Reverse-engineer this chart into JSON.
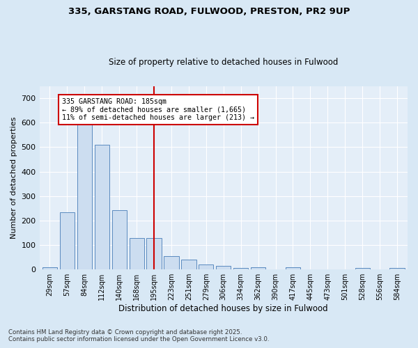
{
  "title1": "335, GARSTANG ROAD, FULWOOD, PRESTON, PR2 9UP",
  "title2": "Size of property relative to detached houses in Fulwood",
  "xlabel": "Distribution of detached houses by size in Fulwood",
  "ylabel": "Number of detached properties",
  "categories": [
    "29sqm",
    "57sqm",
    "84sqm",
    "112sqm",
    "140sqm",
    "168sqm",
    "195sqm",
    "223sqm",
    "251sqm",
    "279sqm",
    "306sqm",
    "334sqm",
    "362sqm",
    "390sqm",
    "417sqm",
    "445sqm",
    "473sqm",
    "501sqm",
    "528sqm",
    "556sqm",
    "584sqm"
  ],
  "values": [
    10,
    233,
    595,
    510,
    243,
    128,
    128,
    55,
    40,
    20,
    15,
    5,
    8,
    0,
    10,
    0,
    0,
    0,
    5,
    0,
    5
  ],
  "bar_color": "#ccddf0",
  "bar_edge_color": "#5a8abf",
  "vline_index": 6,
  "vline_color": "#cc0000",
  "annotation_text": "335 GARSTANG ROAD: 185sqm\n← 89% of detached houses are smaller (1,665)\n11% of semi-detached houses are larger (213) →",
  "annotation_box_color": "#cc0000",
  "ylim": [
    0,
    750
  ],
  "yticks": [
    0,
    100,
    200,
    300,
    400,
    500,
    600,
    700
  ],
  "footer1": "Contains HM Land Registry data © Crown copyright and database right 2025.",
  "footer2": "Contains public sector information licensed under the Open Government Licence v3.0.",
  "bg_color": "#d8e8f5",
  "plot_bg_color": "#e4eef8"
}
